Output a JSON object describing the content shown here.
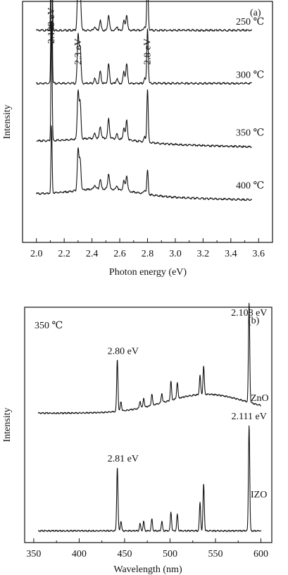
{
  "chart_data": [
    {
      "type": "line",
      "panel_label": "(a)",
      "xlabel": "Photon energy (eV)",
      "ylabel": "Intensity",
      "xlim": [
        1.9,
        3.7
      ],
      "x_ticks": [
        "2.0",
        "2.2",
        "2.4",
        "2.6",
        "2.8",
        "3.0",
        "3.2",
        "3.4",
        "3.6"
      ],
      "x_tick_values": [
        2.0,
        2.2,
        2.4,
        2.6,
        2.8,
        3.0,
        3.2,
        3.4,
        3.6
      ],
      "peaks": [
        {
          "x": 2.109,
          "label": "2.109 eV"
        },
        {
          "x": 2.3,
          "label": "2.3 eV"
        },
        {
          "x": 2.8,
          "label": "2.8 eV"
        }
      ],
      "minor_peaks": [
        2.42,
        2.46,
        2.52,
        2.58,
        2.63,
        2.65,
        2.78
      ],
      "x_range": [
        2.0,
        3.55
      ],
      "series": [
        {
          "name": "250 ℃",
          "label": "250 ℃",
          "baseline": 0.88,
          "slope": 0.0,
          "hump": 0.0,
          "p2109": 0.95,
          "p23": 0.22,
          "p28": 0.24,
          "minor": 0.04
        },
        {
          "name": "300 ℃",
          "label": "300 ℃",
          "baseline": 0.66,
          "slope": 0.0,
          "hump": 0.0,
          "p2109": 0.73,
          "p23": 0.2,
          "p28": 0.23,
          "minor": 0.05
        },
        {
          "name": "350 ℃",
          "label": "350 ℃",
          "baseline": 0.42,
          "slope": 0.015,
          "hump": 0.02,
          "p2109": 0.5,
          "p23": 0.2,
          "p28": 0.22,
          "minor": 0.05
        },
        {
          "name": "400 ℃",
          "label": "400 ℃",
          "baseline": 0.2,
          "slope": 0.015,
          "hump": 0.03,
          "p2109": 0.28,
          "p23": 0.17,
          "p28": 0.1,
          "minor": 0.04
        }
      ]
    },
    {
      "type": "line",
      "panel_label": "(b)",
      "annotation": "350 ℃",
      "xlabel": "Wavelength (nm)",
      "ylabel": "Intensity",
      "xlim": [
        340,
        612
      ],
      "x_ticks": [
        "350",
        "400",
        "450",
        "500",
        "550",
        "600"
      ],
      "x_tick_values": [
        350,
        400,
        450,
        500,
        550,
        600
      ],
      "x_range": [
        355,
        600
      ],
      "series": [
        {
          "name": "ZnO",
          "label": "ZnO",
          "baseline": 0.55,
          "hump": 0.08,
          "peaks": [
            {
              "x": 442,
              "h": 0.22,
              "label": "2.80 eV"
            },
            {
              "x": 446,
              "h": 0.04
            },
            {
              "x": 467,
              "h": 0.03
            },
            {
              "x": 471,
              "h": 0.04
            },
            {
              "x": 480,
              "h": 0.05
            },
            {
              "x": 491,
              "h": 0.04
            },
            {
              "x": 501,
              "h": 0.08
            },
            {
              "x": 508,
              "h": 0.07
            },
            {
              "x": 533,
              "h": 0.08
            },
            {
              "x": 537,
              "h": 0.12
            },
            {
              "x": 587,
              "h": 0.42,
              "label": "2.108 eV"
            }
          ]
        },
        {
          "name": "IZO",
          "label": "IZO",
          "baseline": 0.05,
          "hump": 0.0,
          "peaks": [
            {
              "x": 442,
              "h": 0.27,
              "label": "2.81 eV"
            },
            {
              "x": 446,
              "h": 0.04
            },
            {
              "x": 467,
              "h": 0.03
            },
            {
              "x": 471,
              "h": 0.04
            },
            {
              "x": 480,
              "h": 0.05
            },
            {
              "x": 491,
              "h": 0.04
            },
            {
              "x": 501,
              "h": 0.08
            },
            {
              "x": 508,
              "h": 0.07
            },
            {
              "x": 533,
              "h": 0.12
            },
            {
              "x": 537,
              "h": 0.2
            },
            {
              "x": 587,
              "h": 0.45,
              "label": "2.111 eV"
            }
          ]
        }
      ]
    }
  ]
}
